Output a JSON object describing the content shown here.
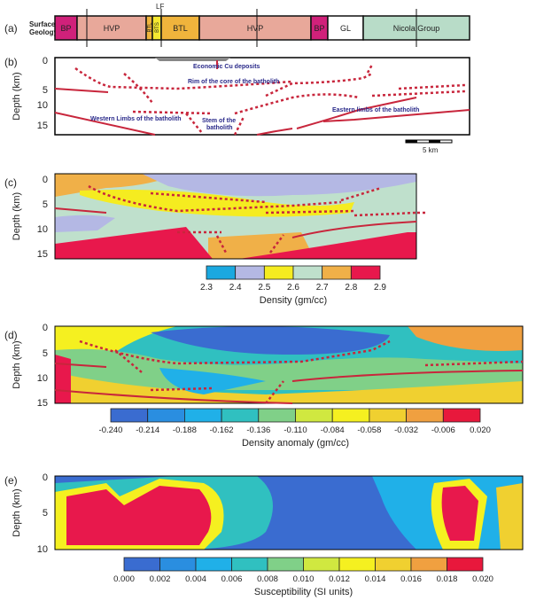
{
  "panel_labels": [
    "(a)",
    "(b)",
    "(c)",
    "(d)",
    "(e)"
  ],
  "surface_geology": {
    "label_line1": "Surface",
    "label_line2": "Geology",
    "fault_label": "LF",
    "units": [
      {
        "name": "BP",
        "color": "#d0217a"
      },
      {
        "name": "HVP",
        "color": "#e8a89a"
      },
      {
        "name": "BTL",
        "color": "#f0b43c"
      },
      {
        "name": "BTS",
        "color": "#f5e830"
      },
      {
        "name": "BTL",
        "color": "#f0b43c"
      },
      {
        "name": "HVP",
        "color": "#e8a89a"
      },
      {
        "name": "BP",
        "color": "#d0217a"
      },
      {
        "name": "GL",
        "color": "#ffffff"
      },
      {
        "name": "Nicola Group",
        "color": "#b8dcc8"
      }
    ]
  },
  "panel_b": {
    "ylabel": "Depth (km)",
    "ticks": [
      "0",
      "5",
      "10",
      "15"
    ],
    "annotations": {
      "cu": "Economic Cu deposits",
      "rim": "Rim of the core of the batholith",
      "west": "Western Limbs of the batholith",
      "stem1": "Stem of the",
      "stem2": "batholith",
      "east": "Eastern limbs of the batholith"
    },
    "scale_label": "5 km"
  },
  "panel_c": {
    "ylabel": "Depth (km)",
    "ticks": [
      "0",
      "5",
      "10",
      "15"
    ],
    "colorbar": {
      "title": "Density (gm/cc)",
      "labels": [
        "2.3",
        "2.4",
        "2.5",
        "2.6",
        "2.7",
        "2.8",
        "2.9"
      ],
      "colors": [
        "#1aa8e0",
        "#b4b8e4",
        "#f5ec20",
        "#bfe0cc",
        "#f0b048",
        "#e8184c"
      ]
    }
  },
  "panel_d": {
    "ylabel": "Depth (km)",
    "ticks": [
      "0",
      "5",
      "10",
      "15"
    ],
    "colorbar": {
      "title": "Density anomaly (gm/cc)",
      "labels": [
        "-0.240",
        "-0.214",
        "-0.188",
        "-0.162",
        "-0.136",
        "-0.110",
        "-0.084",
        "-0.058",
        "-0.032",
        "-0.006",
        "0.020"
      ],
      "colors": [
        "#3a6cd0",
        "#2a8ee0",
        "#20b0e8",
        "#30c0c0",
        "#80d088",
        "#d0e840",
        "#f5f020",
        "#f0d030",
        "#f0a040",
        "#e8183c"
      ]
    }
  },
  "panel_e": {
    "ylabel": "Depth (km)",
    "ticks": [
      "0",
      "5",
      "10"
    ],
    "colorbar": {
      "title": "Susceptibility (SI units)",
      "labels": [
        "0.000",
        "0.002",
        "0.004",
        "0.006",
        "0.008",
        "0.010",
        "0.012",
        "0.014",
        "0.016",
        "0.018",
        "0.020"
      ],
      "colors": [
        "#3a6cd0",
        "#2a8ee0",
        "#20b0e8",
        "#30c0c0",
        "#80d088",
        "#d0e840",
        "#f5f020",
        "#f0d030",
        "#f0a040",
        "#e8183c"
      ]
    }
  }
}
